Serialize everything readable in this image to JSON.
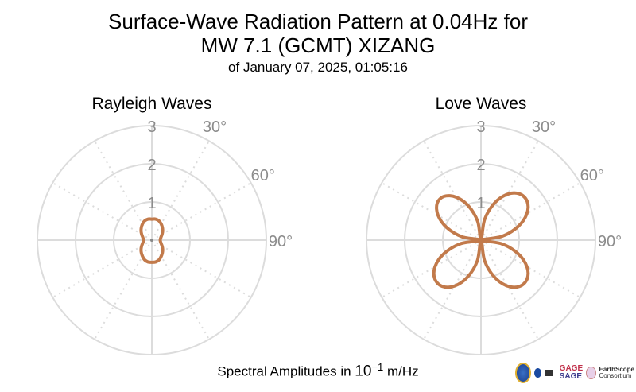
{
  "title_line1": "Surface-Wave Radiation Pattern at 0.04Hz for",
  "title_line2": "MW 7.1 (GCMT) XIZANG",
  "subtitle": "of January 07, 2025, 01:05:16",
  "footer": {
    "prefix": "Spectral Amplitudes in ",
    "unit_base": "10",
    "unit_exp": "−1",
    "unit_suffix": " m/Hz"
  },
  "logos": {
    "gage": "GAGE",
    "sage": "SAGE",
    "earthscope": "EarthScope",
    "consortium": "Consortium"
  },
  "colors": {
    "pattern": "#c27a4b",
    "grid": "#dcdcdc",
    "tick": "#8c8c8c"
  },
  "chart_data": [
    {
      "type": "polar-line",
      "title": "Rayleigh Waves",
      "r_range": [
        0,
        3
      ],
      "r_ticks": [
        "1",
        "2",
        "3"
      ],
      "angle_ticks": [
        "30°",
        "60°",
        "90°"
      ],
      "theta_deg": [
        0,
        10,
        20,
        30,
        40,
        50,
        60,
        70,
        80,
        90,
        100,
        110,
        120,
        130,
        140,
        150,
        160,
        170,
        180,
        190,
        200,
        210,
        220,
        230,
        240,
        250,
        260,
        270,
        280,
        290,
        300,
        310,
        320,
        330,
        340,
        350
      ],
      "r": [
        0.55,
        0.56,
        0.54,
        0.49,
        0.43,
        0.37,
        0.31,
        0.26,
        0.23,
        0.22,
        0.23,
        0.26,
        0.31,
        0.37,
        0.43,
        0.49,
        0.55,
        0.58,
        0.58,
        0.58,
        0.55,
        0.49,
        0.43,
        0.37,
        0.31,
        0.26,
        0.23,
        0.22,
        0.23,
        0.26,
        0.31,
        0.37,
        0.43,
        0.49,
        0.54,
        0.56
      ]
    },
    {
      "type": "polar-line",
      "title": "Love Waves",
      "r_range": [
        0,
        3
      ],
      "r_ticks": [
        "1",
        "2",
        "3"
      ],
      "angle_ticks": [
        "30°",
        "60°",
        "90°"
      ],
      "theta_deg": [
        0,
        10,
        20,
        30,
        40,
        50,
        60,
        70,
        80,
        90,
        100,
        110,
        120,
        130,
        140,
        150,
        160,
        170,
        180,
        190,
        200,
        210,
        220,
        230,
        240,
        250,
        260,
        270,
        280,
        290,
        300,
        310,
        320,
        330,
        340,
        350
      ],
      "r": [
        0.0,
        0.55,
        1.03,
        1.39,
        1.58,
        1.58,
        1.39,
        1.03,
        0.55,
        0.0,
        0.55,
        1.03,
        1.39,
        1.58,
        1.58,
        1.39,
        1.03,
        0.55,
        0.0,
        0.55,
        1.03,
        1.39,
        1.58,
        1.58,
        1.39,
        1.03,
        0.55,
        0.0,
        0.5,
        0.95,
        1.3,
        1.5,
        1.5,
        1.3,
        0.95,
        0.5
      ]
    }
  ]
}
